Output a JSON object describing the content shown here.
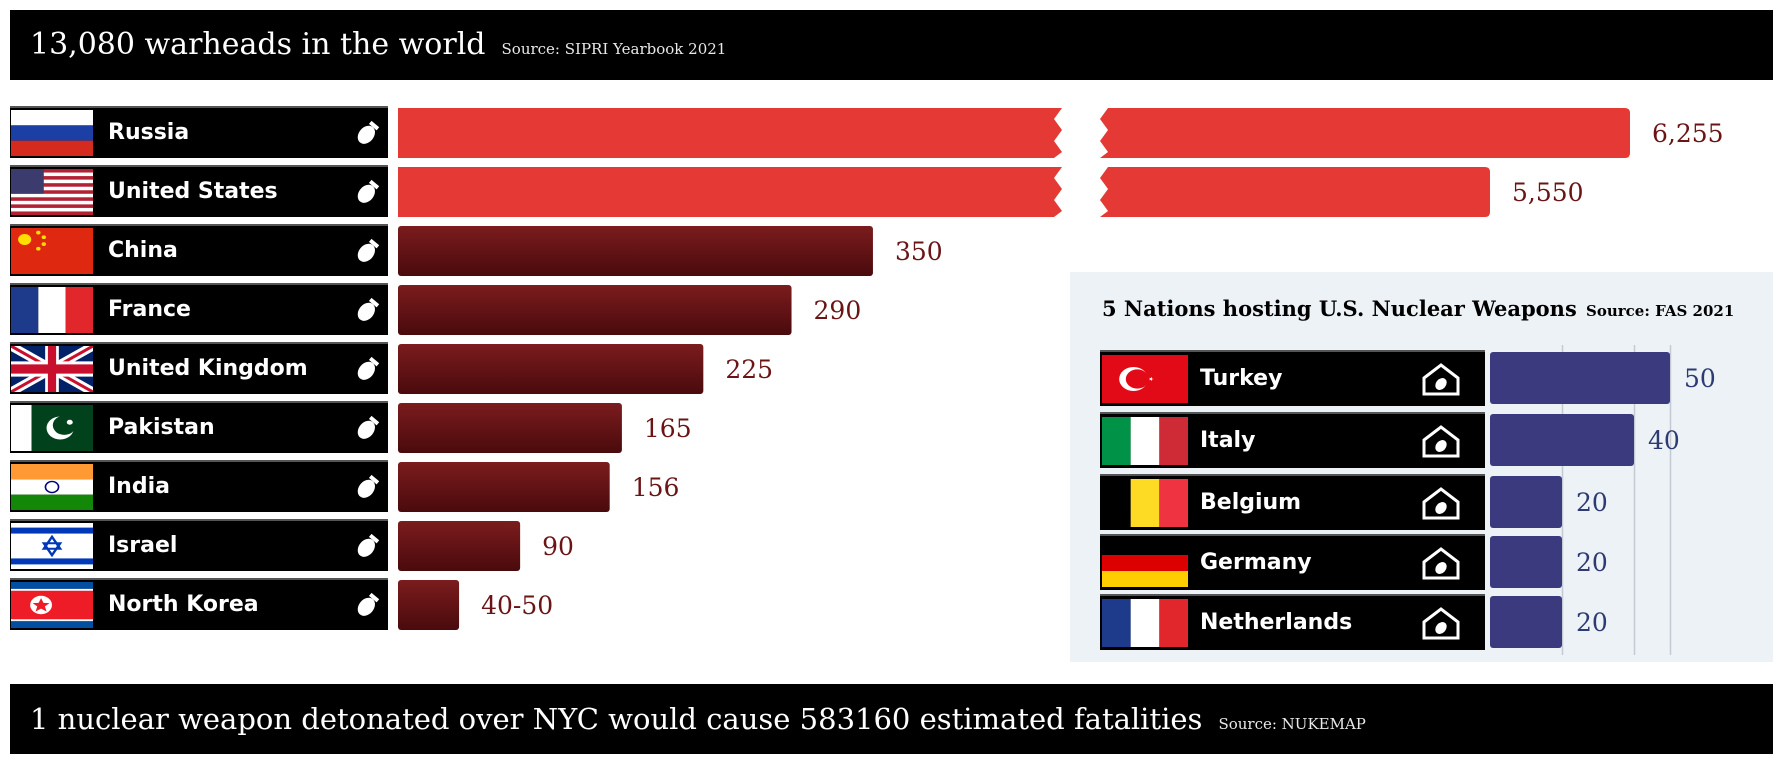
{
  "header": {
    "title": "13,080 warheads in the world",
    "source": "Source: SIPRI Yearbook 2021"
  },
  "footer": {
    "title": "1 nuclear weapon detonated over NYC would cause 583160 estimated fatalities",
    "source": "Source: NUKEMAP"
  },
  "colors": {
    "broken_bar": "#e53935",
    "bar_dark": "#5a0d0f",
    "bar_light": "#7c1c1e",
    "value_text": "#6b1416",
    "host_bar": "#3b3a7e",
    "host_text": "#2e3b72"
  },
  "chart_data": [
    {
      "type": "bar",
      "orientation": "horizontal",
      "title": "13,080 warheads in the world",
      "categories": [
        "Russia",
        "United States",
        "China",
        "France",
        "United Kingdom",
        "Pakistan",
        "India",
        "Israel",
        "North Korea"
      ],
      "values": [
        6255,
        5550,
        350,
        290,
        225,
        165,
        156,
        90,
        45
      ],
      "value_labels": [
        "6,255",
        "5,550",
        "350",
        "290",
        "225",
        "165",
        "156",
        "90",
        "40-50"
      ],
      "broken_axis": [
        "Russia",
        "United States"
      ],
      "icon": "bomb-icon"
    },
    {
      "type": "bar",
      "orientation": "horizontal",
      "title": "5 Nations hosting U.S. Nuclear Weapons",
      "source": "Source: FAS 2021",
      "categories": [
        "Turkey",
        "Italy",
        "Belgium",
        "Germany",
        "Netherlands"
      ],
      "values": [
        50,
        40,
        20,
        20,
        20
      ],
      "value_labels": [
        "50",
        "40",
        "20",
        "20",
        "20"
      ],
      "grid": true,
      "icon": "house-bomb-icon"
    }
  ]
}
